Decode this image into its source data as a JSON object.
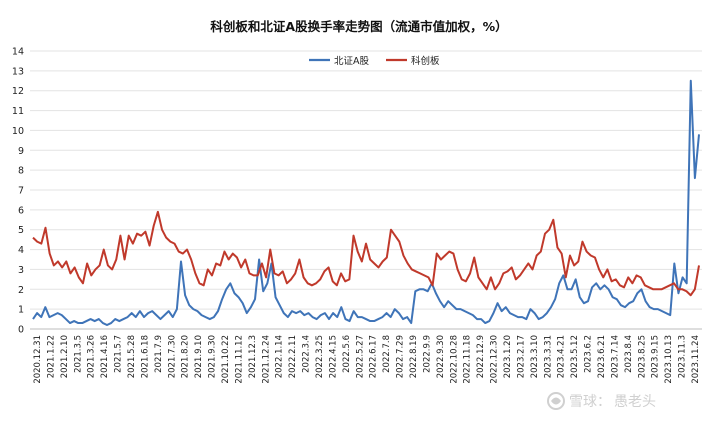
{
  "chart_data": {
    "type": "line",
    "title": "科创板和北证A股换手率走势图（流通市值加权，%）",
    "xlabel": "",
    "ylabel": "",
    "ylim": [
      0,
      14
    ],
    "y_ticks": [
      "0",
      "1",
      "2",
      "3",
      "4",
      "5",
      "6",
      "7",
      "8",
      "9",
      "10",
      "11",
      "12",
      "13",
      "14"
    ],
    "grid": true,
    "legend_position": "top-center",
    "x_ticks": [
      "2020.12.31",
      "2021.1.22",
      "2021.2.10",
      "2021.3.5",
      "2021.3.26",
      "2021.4.16",
      "2021.5.7",
      "2021.5.28",
      "2021.6.18",
      "2021.7.9",
      "2021.7.30",
      "2021.8.20",
      "2021.9.10",
      "2021.9.30",
      "2021.10.22",
      "2021.11.12",
      "2021.12.3",
      "2021.12.24",
      "2022.1.14",
      "2022.2.11",
      "2022.3.4",
      "2022.3.25",
      "2022.4.15",
      "2022.5.6",
      "2022.5.27",
      "2022.6.17",
      "2022.7.8",
      "2022.7.29",
      "2022.8.19",
      "2022.9.9",
      "2022.9.30",
      "2022.10.28",
      "2022.11.18",
      "2022.12.9",
      "2022.12.30",
      "2023.1.20",
      "2023.2.17",
      "2023.3.10",
      "2023.3.31",
      "2023.4.21",
      "2023.5.12",
      "2023.6.2",
      "2023.6.21",
      "2023.7.14",
      "2023.8.4",
      "2023.8.25",
      "2023.9.15",
      "2023.10.13",
      "2023.11.3",
      "2023.11.24"
    ],
    "series": [
      {
        "name": "北证A股",
        "color": "#3f74b8",
        "values": [
          0.5,
          0.8,
          0.6,
          1.1,
          0.6,
          0.7,
          0.8,
          0.7,
          0.5,
          0.3,
          0.4,
          0.3,
          0.3,
          0.4,
          0.5,
          0.4,
          0.5,
          0.3,
          0.2,
          0.3,
          0.5,
          0.4,
          0.5,
          0.6,
          0.8,
          0.6,
          0.9,
          0.6,
          0.8,
          0.9,
          0.7,
          0.5,
          0.7,
          0.9,
          0.6,
          1.0,
          3.4,
          1.7,
          1.2,
          1.0,
          0.9,
          0.7,
          0.6,
          0.5,
          0.6,
          0.9,
          1.5,
          2.0,
          2.3,
          1.8,
          1.6,
          1.3,
          0.8,
          1.1,
          1.5,
          3.5,
          1.9,
          2.3,
          3.3,
          1.6,
          1.2,
          0.8,
          0.6,
          0.9,
          0.8,
          0.9,
          0.7,
          0.8,
          0.6,
          0.5,
          0.7,
          0.8,
          0.5,
          0.8,
          0.6,
          1.1,
          0.5,
          0.4,
          0.9,
          0.6,
          0.6,
          0.5,
          0.4,
          0.4,
          0.5,
          0.6,
          0.8,
          0.6,
          1.0,
          0.8,
          0.5,
          0.6,
          0.3,
          1.9,
          2.0,
          2.0,
          1.9,
          2.3,
          1.8,
          1.4,
          1.1,
          1.4,
          1.2,
          1.0,
          1.0,
          0.9,
          0.8,
          0.7,
          0.5,
          0.5,
          0.3,
          0.4,
          0.8,
          1.3,
          0.9,
          1.1,
          0.8,
          0.7,
          0.6,
          0.6,
          0.5,
          1.0,
          0.8,
          0.5,
          0.6,
          0.8,
          1.1,
          1.5,
          2.3,
          2.7,
          2.0,
          2.0,
          2.5,
          1.6,
          1.3,
          1.4,
          2.1,
          2.3,
          2.0,
          2.2,
          2.0,
          1.6,
          1.5,
          1.2,
          1.1,
          1.3,
          1.4,
          1.8,
          2.0,
          1.4,
          1.1,
          1.0,
          1.0,
          0.9,
          0.8,
          0.7,
          3.3,
          1.8,
          2.6,
          2.3,
          12.5,
          7.6,
          9.8
        ]
      },
      {
        "name": "科创板",
        "color": "#c0392b",
        "values": [
          4.6,
          4.4,
          4.3,
          5.1,
          3.8,
          3.2,
          3.4,
          3.1,
          3.4,
          2.8,
          3.1,
          2.6,
          2.3,
          3.3,
          2.7,
          3.0,
          3.2,
          4.0,
          3.2,
          3.0,
          3.5,
          4.7,
          3.5,
          4.7,
          4.3,
          4.8,
          4.7,
          4.9,
          4.2,
          5.2,
          5.9,
          5.0,
          4.6,
          4.4,
          4.3,
          3.9,
          3.8,
          4.0,
          3.5,
          2.8,
          2.3,
          2.2,
          3.0,
          2.7,
          3.3,
          3.2,
          3.9,
          3.5,
          3.8,
          3.6,
          3.1,
          3.5,
          2.8,
          2.7,
          2.7,
          3.3,
          2.6,
          4.0,
          2.8,
          2.7,
          2.9,
          2.3,
          2.5,
          2.8,
          3.5,
          2.6,
          2.3,
          2.2,
          2.3,
          2.5,
          2.9,
          3.1,
          2.4,
          2.2,
          2.8,
          2.4,
          2.5,
          4.7,
          3.9,
          3.4,
          4.3,
          3.5,
          3.3,
          3.1,
          3.4,
          3.6,
          5.0,
          4.7,
          4.4,
          3.7,
          3.3,
          3.0,
          2.9,
          2.8,
          2.7,
          2.6,
          2.2,
          3.8,
          3.5,
          3.7,
          3.9,
          3.8,
          3.0,
          2.5,
          2.4,
          2.8,
          3.6,
          2.6,
          2.3,
          2.0,
          2.6,
          2.0,
          2.3,
          2.8,
          2.9,
          3.1,
          2.5,
          2.7,
          3.0,
          3.3,
          3.0,
          3.7,
          3.9,
          4.8,
          5.0,
          5.5,
          4.1,
          3.8,
          2.6,
          3.7,
          3.2,
          3.4,
          4.4,
          3.9,
          3.7,
          3.6,
          3.0,
          2.6,
          3.0,
          2.4,
          2.5,
          2.2,
          2.1,
          2.6,
          2.3,
          2.7,
          2.6,
          2.2,
          2.1,
          2.0,
          2.0,
          2.0,
          2.1,
          2.2,
          2.3,
          2.0,
          2.0,
          1.9,
          1.7,
          2.0,
          3.2
        ]
      }
    ]
  },
  "watermark": {
    "brand": "雪球",
    "sep": "：",
    "author": "愚老头"
  }
}
